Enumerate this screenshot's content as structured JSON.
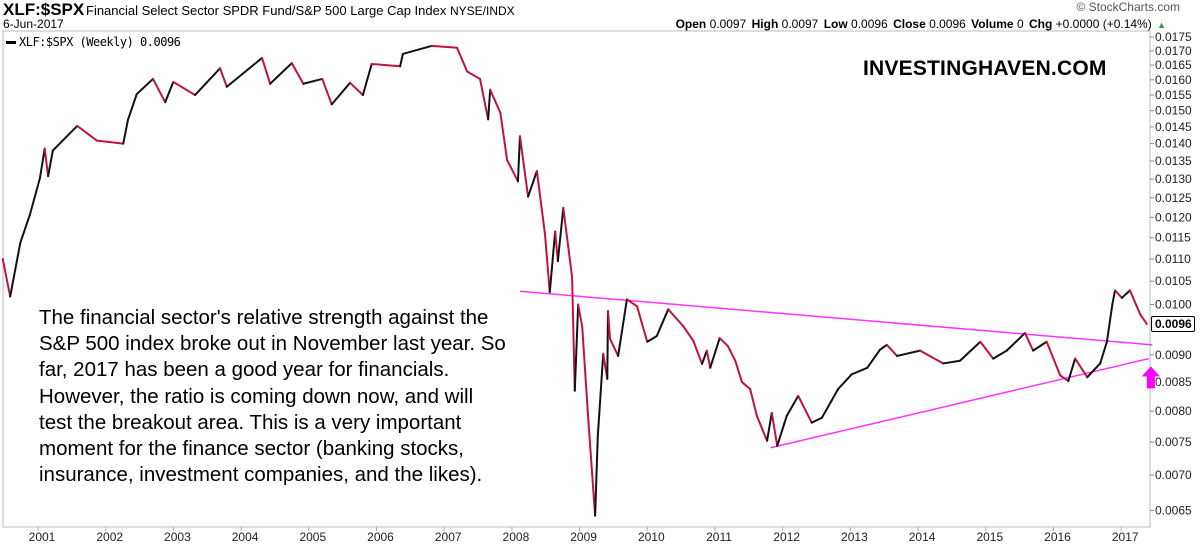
{
  "header": {
    "symbol": "XLF:$SPX",
    "description": "Financial Select Sector SPDR Fund/S&P 500 Large Cap Index",
    "exchange": "NYSE/INDX",
    "date": "6-Jun-2017",
    "copyright": "© StockCharts.com",
    "stats": {
      "open_label": "Open",
      "open": "0.0097",
      "high_label": "High",
      "high": "0.0097",
      "low_label": "Low",
      "low": "0.0096",
      "close_label": "Close",
      "close": "0.0096",
      "volume_label": "Volume",
      "volume": "0",
      "chg_label": "Chg",
      "chg": "+0.0000 (+0.14%)",
      "chg_arrow": "▲"
    }
  },
  "legend": {
    "label": "XLF:$SPX (Weekly) 0.0096"
  },
  "watermark": "INVESTINGHAVEN.COM",
  "price_tag": "0.0096",
  "annotation_lines": [
    "The financial sector's relative strength against the",
    "S&P 500 index broke out in November last year. So",
    "far, 2017 has been a good year for financials.",
    "However, the ratio is coming down now, and will",
    "test the breakout area. This is a very important",
    "moment for the finance sector (banking stocks,",
    "insurance, investment companies, and the likes)."
  ],
  "colors": {
    "up": "#111111",
    "down": "#c0143c",
    "trendline": "#ff33ff",
    "arrow": "#ff00ff",
    "axis": "#999999"
  },
  "chart_data": {
    "type": "line",
    "title": "XLF:$SPX (Weekly)",
    "xlabel": "",
    "ylabel": "",
    "scale": "log",
    "ylim": [
      0.0063,
      0.0176
    ],
    "xlim": [
      2000.4,
      2017.45
    ],
    "y_ticks": [
      "0.0175",
      "0.0170",
      "0.0165",
      "0.0160",
      "0.0155",
      "0.0150",
      "0.0145",
      "0.0140",
      "0.0135",
      "0.0130",
      "0.0125",
      "0.0120",
      "0.0115",
      "0.0110",
      "0.0105",
      "0.0100",
      "0.0090",
      "0.0085",
      "0.0080",
      "0.0075",
      "0.0070",
      "0.0065"
    ],
    "x_ticks": [
      "2001",
      "2002",
      "2003",
      "2004",
      "2005",
      "2006",
      "2007",
      "2008",
      "2009",
      "2010",
      "2011",
      "2012",
      "2013",
      "2014",
      "2015",
      "2016",
      "2017"
    ],
    "series": [
      {
        "name": "XLF:$SPX",
        "points": [
          [
            2000.42,
            0.011
          ],
          [
            2000.53,
            0.01017
          ],
          [
            2000.68,
            0.01138
          ],
          [
            2000.82,
            0.01206
          ],
          [
            2000.97,
            0.01303
          ],
          [
            2001.04,
            0.01386
          ],
          [
            2001.09,
            0.01308
          ],
          [
            2001.16,
            0.0138
          ],
          [
            2001.52,
            0.01453
          ],
          [
            2001.81,
            0.01409
          ],
          [
            2002.2,
            0.014
          ],
          [
            2002.27,
            0.01472
          ],
          [
            2002.4,
            0.01553
          ],
          [
            2002.64,
            0.01603
          ],
          [
            2002.82,
            0.01527
          ],
          [
            2002.94,
            0.01593
          ],
          [
            2003.26,
            0.0155
          ],
          [
            2003.63,
            0.01639
          ],
          [
            2003.73,
            0.01577
          ],
          [
            2004.25,
            0.01675
          ],
          [
            2004.37,
            0.01587
          ],
          [
            2004.69,
            0.01657
          ],
          [
            2004.86,
            0.01587
          ],
          [
            2005.14,
            0.01603
          ],
          [
            2005.28,
            0.0152
          ],
          [
            2005.55,
            0.0159
          ],
          [
            2005.74,
            0.0155
          ],
          [
            2005.87,
            0.01654
          ],
          [
            2006.29,
            0.01646
          ],
          [
            2006.33,
            0.01689
          ],
          [
            2006.76,
            0.01718
          ],
          [
            2007.13,
            0.01711
          ],
          [
            2007.28,
            0.01628
          ],
          [
            2007.47,
            0.01603
          ],
          [
            2007.59,
            0.01473
          ],
          [
            2007.62,
            0.01567
          ],
          [
            2007.77,
            0.01494
          ],
          [
            2007.87,
            0.01353
          ],
          [
            2008.03,
            0.01294
          ],
          [
            2008.06,
            0.01422
          ],
          [
            2008.18,
            0.01253
          ],
          [
            2008.31,
            0.01322
          ],
          [
            2008.43,
            0.01158
          ],
          [
            2008.5,
            0.01026
          ],
          [
            2008.58,
            0.01165
          ],
          [
            2008.62,
            0.01095
          ],
          [
            2008.7,
            0.01224
          ],
          [
            2008.83,
            0.01059
          ],
          [
            2008.87,
            0.00835
          ],
          [
            2008.92,
            0.01
          ],
          [
            2008.98,
            0.00954
          ],
          [
            2009.07,
            0.00785
          ],
          [
            2009.17,
            0.00643
          ],
          [
            2009.21,
            0.0076
          ],
          [
            2009.29,
            0.00902
          ],
          [
            2009.35,
            0.00856
          ],
          [
            2009.36,
            0.00986
          ],
          [
            2009.39,
            0.00931
          ],
          [
            2009.51,
            0.00898
          ],
          [
            2009.64,
            0.01011
          ],
          [
            2009.79,
            0.00996
          ],
          [
            2009.94,
            0.00925
          ],
          [
            2010.08,
            0.00936
          ],
          [
            2010.25,
            0.0099
          ],
          [
            2010.47,
            0.00956
          ],
          [
            2010.62,
            0.00927
          ],
          [
            2010.75,
            0.00883
          ],
          [
            2010.82,
            0.00908
          ],
          [
            2010.87,
            0.00876
          ],
          [
            2011.01,
            0.00932
          ],
          [
            2011.13,
            0.00917
          ],
          [
            2011.24,
            0.00889
          ],
          [
            2011.34,
            0.0085
          ],
          [
            2011.46,
            0.00838
          ],
          [
            2011.56,
            0.00792
          ],
          [
            2011.71,
            0.00752
          ],
          [
            2011.78,
            0.00797
          ],
          [
            2011.86,
            0.00744
          ],
          [
            2012.0,
            0.00792
          ],
          [
            2012.17,
            0.00826
          ],
          [
            2012.37,
            0.00781
          ],
          [
            2012.52,
            0.00789
          ],
          [
            2012.76,
            0.00838
          ],
          [
            2012.96,
            0.00864
          ],
          [
            2013.19,
            0.00876
          ],
          [
            2013.38,
            0.0091
          ],
          [
            2013.48,
            0.00919
          ],
          [
            2013.63,
            0.00898
          ],
          [
            2013.97,
            0.00908
          ],
          [
            2014.31,
            0.00884
          ],
          [
            2014.56,
            0.00889
          ],
          [
            2014.86,
            0.00925
          ],
          [
            2015.05,
            0.00893
          ],
          [
            2015.25,
            0.00908
          ],
          [
            2015.52,
            0.00942
          ],
          [
            2015.64,
            0.00908
          ],
          [
            2015.84,
            0.00925
          ],
          [
            2016.04,
            0.00862
          ],
          [
            2016.16,
            0.00852
          ],
          [
            2016.26,
            0.00893
          ],
          [
            2016.44,
            0.00859
          ],
          [
            2016.63,
            0.00884
          ],
          [
            2016.73,
            0.00925
          ],
          [
            2016.81,
            0.01
          ],
          [
            2016.85,
            0.0103
          ],
          [
            2016.95,
            0.01014
          ],
          [
            2017.07,
            0.0103
          ],
          [
            2017.22,
            0.0098
          ],
          [
            2017.32,
            0.0096
          ]
        ]
      }
    ],
    "trendlines": [
      {
        "name": "resistance",
        "from": [
          2008.06,
          0.01028
        ],
        "to": [
          2017.4,
          0.00919
        ]
      },
      {
        "name": "support",
        "from": [
          2011.76,
          0.00741
        ],
        "to": [
          2017.35,
          0.00893
        ]
      }
    ],
    "annotations": [
      {
        "type": "arrow-up",
        "at": [
          2017.35,
          0.00855
        ]
      }
    ],
    "grid": false,
    "legend_position": "top-left"
  }
}
